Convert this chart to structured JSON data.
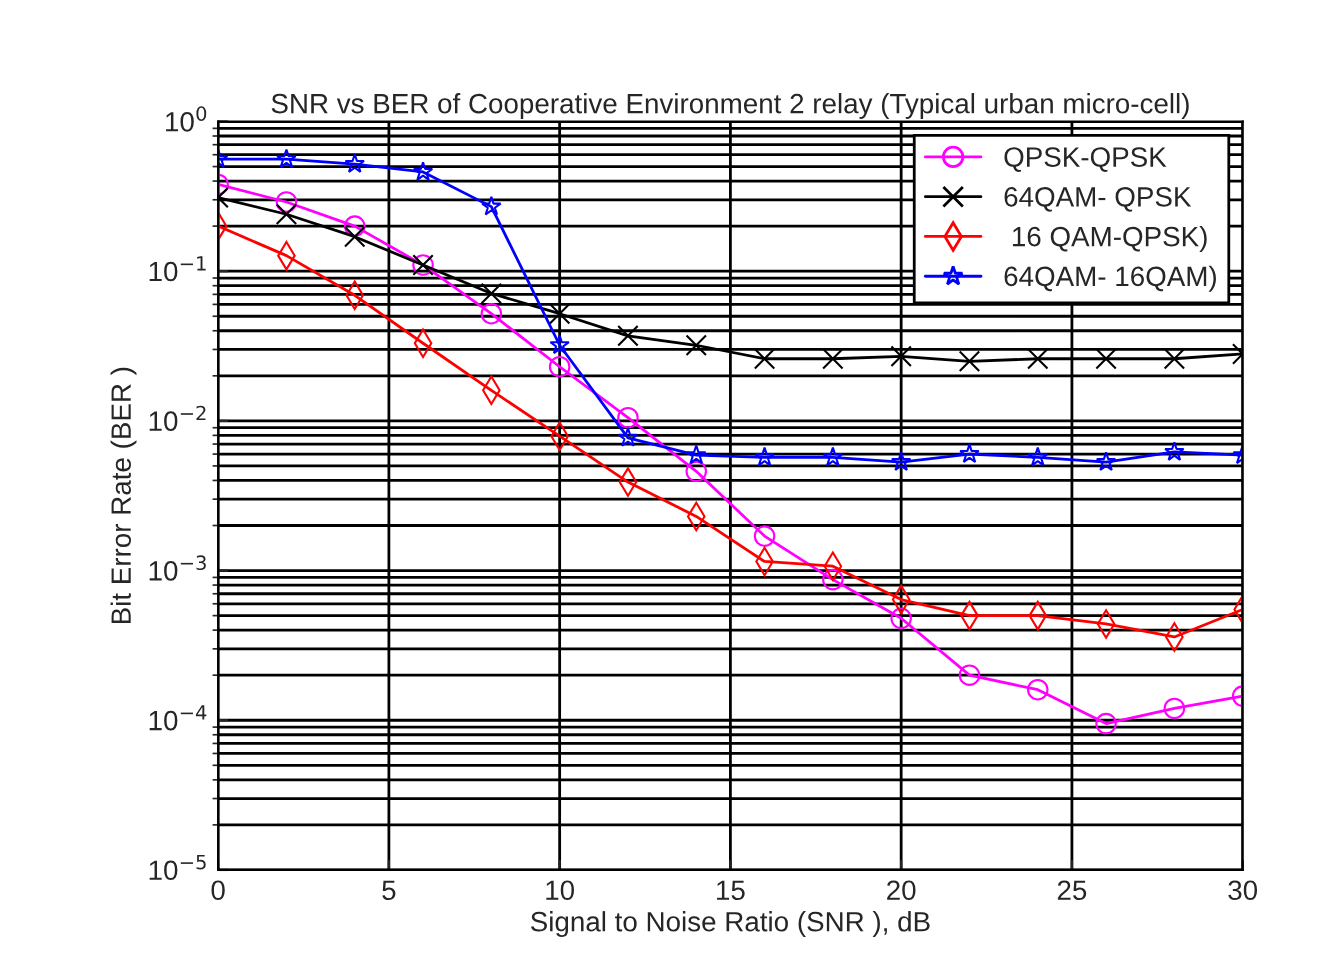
{
  "chart_data": {
    "type": "line",
    "title": "SNR vs BER of Cooperative Environment 2 relay (Typical urban micro-cell)",
    "xlabel": "Signal to Noise Ratio (SNR ), dB",
    "ylabel": "Bit Error Rate (BER )",
    "x": [
      0,
      2,
      4,
      6,
      8,
      10,
      12,
      14,
      16,
      18,
      20,
      22,
      24,
      26,
      28,
      30
    ],
    "series": [
      {
        "name": "QPSK-QPSK",
        "color": "#ff00ff",
        "marker": "circle",
        "values": [
          0.38,
          0.29,
          0.2,
          0.11,
          0.052,
          0.023,
          0.0105,
          0.0046,
          0.0017,
          0.00087,
          0.00048,
          0.0002,
          0.00016,
          9.5e-05,
          0.00012,
          0.000145
        ]
      },
      {
        "name": "64QAM- QPSK",
        "color": "#000000",
        "marker": "cross",
        "values": [
          0.31,
          0.24,
          0.17,
          0.11,
          0.071,
          0.052,
          0.037,
          0.032,
          0.026,
          0.026,
          0.027,
          0.025,
          0.026,
          0.026,
          0.026,
          0.028
        ]
      },
      {
        "name": " 16 QAM-QPSK)",
        "color": "#ff0000",
        "marker": "diamond",
        "values": [
          0.2,
          0.127,
          0.069,
          0.033,
          0.016,
          0.0079,
          0.0039,
          0.0023,
          0.00115,
          0.00107,
          0.00064,
          0.0005,
          0.0005,
          0.00044,
          0.00036,
          0.00055
        ]
      },
      {
        "name": "64QAM- 16QAM)",
        "color": "#0000ff",
        "marker": "star",
        "values": [
          0.56,
          0.56,
          0.52,
          0.46,
          0.27,
          0.032,
          0.0077,
          0.0059,
          0.0057,
          0.0057,
          0.0053,
          0.006,
          0.0057,
          0.0053,
          0.0062,
          0.0059
        ]
      }
    ],
    "log": "y",
    "xlim": [
      0,
      30
    ],
    "xticks": [
      0,
      5,
      10,
      15,
      20,
      25,
      30
    ],
    "ylim": [
      1e-05,
      1
    ],
    "yticks": [
      {
        "value": 1e-05,
        "label": "10$^{−5}$"
      },
      {
        "value": 0.0001,
        "label": "10$^{−4}$"
      },
      {
        "value": 0.001,
        "label": "10$^{−3}$"
      },
      {
        "value": 0.01,
        "label": "10$^{−2}$"
      },
      {
        "value": 0.1,
        "label": "10$^{−1}$"
      },
      {
        "value": 1,
        "label": "10$^{0}$"
      }
    ],
    "grid": true,
    "legend": "top right",
    "line_style": "solid"
  }
}
